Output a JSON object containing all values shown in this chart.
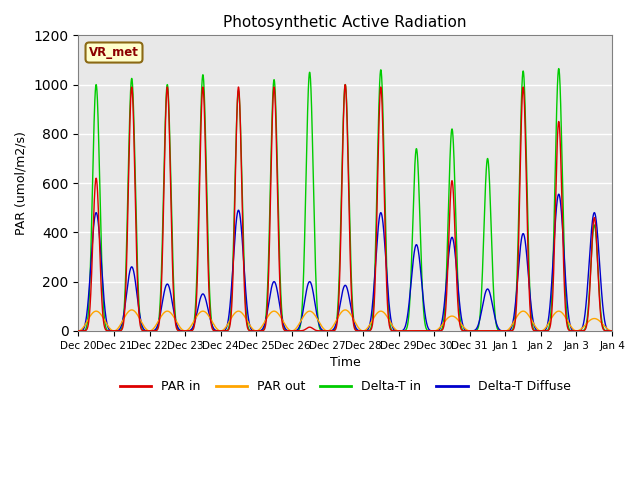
{
  "title": "Photosynthetic Active Radiation",
  "ylabel": "PAR (umol/m2/s)",
  "xlabel": "Time",
  "annotation": "VR_met",
  "ylim": [
    0,
    1200
  ],
  "background_color": "#e8e8e8",
  "colors": {
    "par_in": "#dd0000",
    "par_out": "#ffa500",
    "delta_t_in": "#00cc00",
    "delta_t_diffuse": "#0000cc"
  },
  "legend": [
    "PAR in",
    "PAR out",
    "Delta-T in",
    "Delta-T Diffuse"
  ],
  "x_tick_labels": [
    "Dec 20",
    "Dec 21",
    "Dec 22",
    "Dec 23",
    "Dec 24",
    "Dec 25",
    "Dec 26",
    "Dec 27",
    "Dec 28",
    "Dec 29",
    "Dec 30",
    "Dec 31",
    "Jan 1",
    "Jan 2",
    "Jan 3",
    "Jan 4"
  ],
  "n_days": 15,
  "pts_per_day": 288,
  "par_in_peaks": [
    620,
    990,
    990,
    990,
    990,
    990,
    15,
    1000,
    990,
    0,
    610,
    0,
    990,
    850,
    460,
    0
  ],
  "par_out_peaks": [
    80,
    85,
    80,
    80,
    80,
    80,
    80,
    85,
    80,
    0,
    60,
    0,
    80,
    80,
    50,
    0
  ],
  "delta_t_in_peaks": [
    1000,
    1025,
    1000,
    1040,
    975,
    1020,
    1050,
    1000,
    1060,
    740,
    820,
    700,
    1055,
    1065,
    430,
    0
  ],
  "delta_t_diff_peaks": [
    480,
    260,
    190,
    150,
    490,
    200,
    200,
    185,
    480,
    350,
    380,
    170,
    395,
    555,
    480,
    0
  ],
  "par_in_sharpness": 12,
  "par_out_sharpness": 2,
  "delta_t_in_sharpness": 10,
  "delta_t_diff_sharpness": 5
}
